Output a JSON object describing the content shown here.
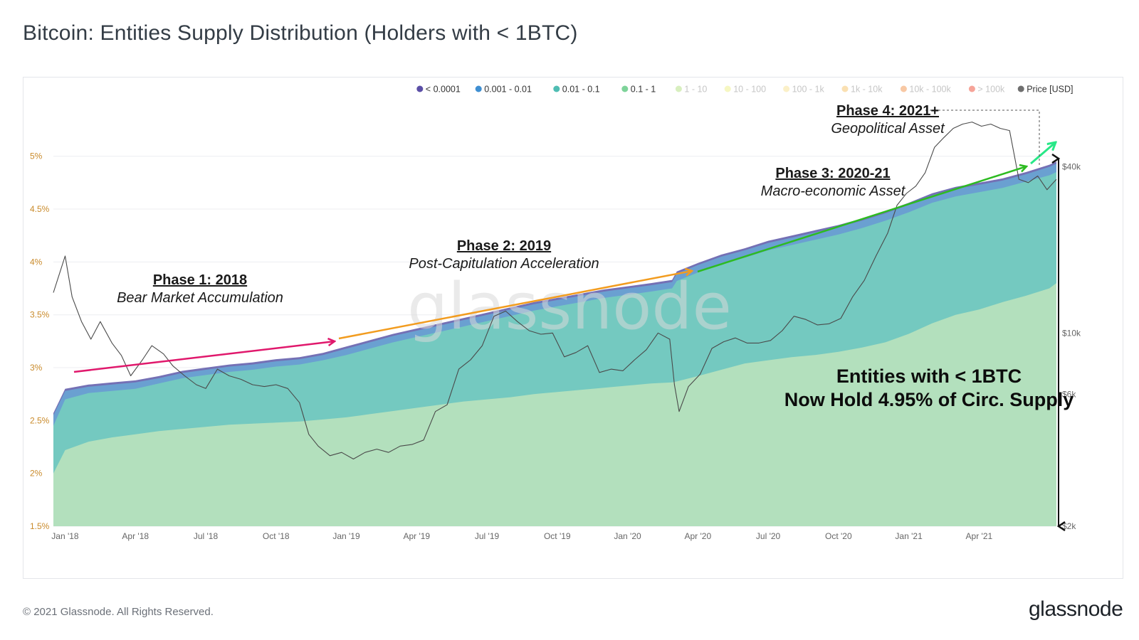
{
  "header": {
    "title": "Bitcoin: Entities Supply Distribution (Holders with < 1BTC)"
  },
  "footer": {
    "copyright": "© 2021 Glassnode. All Rights Reserved.",
    "brand": "glassnode"
  },
  "watermark": "glassnode",
  "chart_data": {
    "type": "area",
    "title": "Bitcoin: Entities Supply Distribution (Holders with < 1BTC)",
    "legend_position": "top-right",
    "legend": [
      {
        "label": "< 0.0001",
        "color": "#5b4fa6",
        "active": true
      },
      {
        "label": "0.001 - 0.01",
        "color": "#3f8fd2",
        "active": true
      },
      {
        "label": "0.01 - 0.1",
        "color": "#4fbdb3",
        "active": true
      },
      {
        "label": "0.1 - 1",
        "color": "#7ed39a",
        "active": true
      },
      {
        "label": "1 - 10",
        "color": "#b8e28a",
        "active": false
      },
      {
        "label": "10 - 100",
        "color": "#eef08f",
        "active": false
      },
      {
        "label": "100 - 1k",
        "color": "#f8e39a",
        "active": false
      },
      {
        "label": "1k - 10k",
        "color": "#f6c672",
        "active": false
      },
      {
        "label": "10k - 100k",
        "color": "#f29a5a",
        "active": false
      },
      {
        "label": "> 100k",
        "color": "#ef5a45",
        "active": false
      },
      {
        "label": "Price [USD]",
        "color": "#6f6f6f",
        "active": true
      }
    ],
    "x_ticks": [
      "Jan '18",
      "Apr '18",
      "Jul '18",
      "Oct '18",
      "Jan '19",
      "Apr '19",
      "Jul '19",
      "Oct '19",
      "Jan '20",
      "Apr '20",
      "Jul '20",
      "Oct '20",
      "Jan '21",
      "Apr '21"
    ],
    "x_tick_months": [
      1,
      4,
      7,
      10,
      13,
      16,
      19,
      22,
      25,
      28,
      31,
      34,
      37,
      40
    ],
    "y_left_ticks": [
      "1.5%",
      "2%",
      "2.5%",
      "3%",
      "3.5%",
      "4%",
      "4.5%",
      "5%"
    ],
    "y_left_tick_values": [
      1.5,
      2,
      2.5,
      3,
      3.5,
      4,
      4.5,
      5
    ],
    "ylim_left": [
      1.5,
      5.2
    ],
    "y_right_ticks": [
      "$2k",
      "$6k",
      "$10k",
      "$40k"
    ],
    "y_right_tick_values": [
      2000,
      6000,
      10000,
      40000
    ],
    "ylim_right_log": [
      2000,
      52000
    ],
    "grid": true,
    "series_x_months": [
      0.5,
      1,
      2,
      3,
      4,
      5,
      6,
      7,
      8,
      9,
      10,
      11,
      12,
      13,
      14,
      15,
      16,
      17,
      18,
      19,
      20,
      21,
      22,
      23,
      24,
      25,
      26,
      26.9,
      27.1,
      28,
      29,
      30,
      31,
      32,
      33,
      34,
      35,
      36,
      37,
      38,
      39,
      40,
      41,
      42,
      43,
      43.3
    ],
    "series": [
      {
        "name": "0.1 - 1",
        "color": "#b3e0bd",
        "values": [
          2.0,
          2.22,
          2.3,
          2.34,
          2.37,
          2.4,
          2.42,
          2.44,
          2.46,
          2.47,
          2.48,
          2.49,
          2.51,
          2.53,
          2.56,
          2.59,
          2.62,
          2.65,
          2.68,
          2.7,
          2.72,
          2.75,
          2.77,
          2.79,
          2.81,
          2.83,
          2.85,
          2.86,
          2.87,
          2.92,
          2.98,
          3.04,
          3.07,
          3.1,
          3.12,
          3.15,
          3.19,
          3.24,
          3.32,
          3.42,
          3.5,
          3.55,
          3.62,
          3.68,
          3.75,
          3.8
        ]
      },
      {
        "name": "0.01 - 0.1",
        "color": "#74c9c0",
        "values": [
          2.45,
          2.7,
          2.76,
          2.78,
          2.8,
          2.85,
          2.9,
          2.93,
          2.96,
          2.98,
          3.01,
          3.03,
          3.07,
          3.12,
          3.18,
          3.24,
          3.29,
          3.34,
          3.39,
          3.44,
          3.49,
          3.54,
          3.58,
          3.62,
          3.66,
          3.69,
          3.72,
          3.75,
          3.82,
          3.9,
          3.98,
          4.04,
          4.11,
          4.16,
          4.21,
          4.26,
          4.32,
          4.39,
          4.47,
          4.56,
          4.62,
          4.66,
          4.7,
          4.76,
          4.82,
          4.85
        ]
      },
      {
        "name": "0.001 - 0.01",
        "color": "#6aa0d1",
        "values": [
          2.55,
          2.78,
          2.82,
          2.84,
          2.86,
          2.9,
          2.95,
          2.98,
          3.01,
          3.03,
          3.06,
          3.08,
          3.12,
          3.18,
          3.24,
          3.3,
          3.35,
          3.4,
          3.45,
          3.5,
          3.55,
          3.6,
          3.64,
          3.68,
          3.72,
          3.75,
          3.78,
          3.81,
          3.89,
          3.97,
          4.05,
          4.11,
          4.18,
          4.23,
          4.28,
          4.33,
          4.39,
          4.46,
          4.54,
          4.63,
          4.69,
          4.73,
          4.77,
          4.83,
          4.9,
          4.93
        ]
      },
      {
        "name": "< 0.0001",
        "color": "#7470b5",
        "values": [
          2.57,
          2.8,
          2.84,
          2.86,
          2.88,
          2.92,
          2.97,
          3.0,
          3.03,
          3.05,
          3.08,
          3.1,
          3.14,
          3.2,
          3.26,
          3.32,
          3.37,
          3.42,
          3.47,
          3.52,
          3.57,
          3.62,
          3.66,
          3.7,
          3.74,
          3.77,
          3.8,
          3.83,
          3.91,
          3.99,
          4.07,
          4.13,
          4.2,
          4.25,
          4.3,
          4.35,
          4.41,
          4.48,
          4.56,
          4.65,
          4.71,
          4.75,
          4.79,
          4.85,
          4.92,
          4.95
        ]
      }
    ],
    "price_series": {
      "name": "Price [USD]",
      "x_months": [
        0.5,
        1.0,
        1.3,
        1.7,
        2.1,
        2.5,
        3.0,
        3.4,
        3.8,
        4.3,
        4.7,
        5.2,
        5.6,
        6.1,
        6.6,
        7.0,
        7.5,
        8.0,
        8.5,
        9.0,
        9.5,
        10.0,
        10.5,
        11.0,
        11.4,
        11.8,
        12.3,
        12.8,
        13.3,
        13.8,
        14.3,
        14.8,
        15.3,
        15.8,
        16.3,
        16.8,
        17.3,
        17.8,
        18.3,
        18.8,
        19.3,
        19.8,
        20.3,
        20.8,
        21.3,
        21.8,
        22.3,
        22.8,
        23.3,
        23.8,
        24.3,
        24.8,
        25.3,
        25.8,
        26.3,
        26.8,
        27.0,
        27.2,
        27.6,
        28.1,
        28.6,
        29.1,
        29.6,
        30.1,
        30.6,
        31.1,
        31.6,
        32.1,
        32.6,
        33.1,
        33.6,
        34.1,
        34.6,
        35.1,
        35.6,
        36.1,
        36.5,
        36.9,
        37.3,
        37.7,
        38.1,
        38.5,
        38.9,
        39.3,
        39.7,
        40.1,
        40.5,
        40.9,
        41.3,
        41.7,
        42.1,
        42.5,
        42.9,
        43.3
      ],
      "values": [
        14000,
        19000,
        13500,
        11000,
        9500,
        11000,
        9200,
        8300,
        7000,
        8000,
        9000,
        8400,
        7600,
        7000,
        6500,
        6300,
        7400,
        7000,
        6800,
        6500,
        6400,
        6500,
        6300,
        5600,
        4300,
        3900,
        3600,
        3700,
        3500,
        3700,
        3800,
        3700,
        3900,
        3950,
        4100,
        5200,
        5500,
        7400,
        8000,
        9000,
        11500,
        12000,
        11000,
        10200,
        9900,
        10000,
        8200,
        8500,
        9000,
        7200,
        7400,
        7300,
        8000,
        8700,
        10000,
        9500,
        6500,
        5200,
        6400,
        7100,
        8800,
        9300,
        9600,
        9200,
        9200,
        9400,
        10200,
        11500,
        11200,
        10700,
        10800,
        11300,
        13500,
        15500,
        19000,
        23000,
        29000,
        32000,
        34000,
        38000,
        47000,
        51000,
        55000,
        57000,
        58000,
        56000,
        57000,
        55000,
        54000,
        36000,
        35000,
        37000,
        33000,
        36000
      ]
    },
    "annotations": [
      {
        "title": "Phase 1: 2018",
        "subtitle": "Bear Market Accumulation",
        "arrow_color": "#e0186c"
      },
      {
        "title": "Phase 2: 2019",
        "subtitle": "Post-Capitulation Acceleration",
        "arrow_color": "#f29c1f"
      },
      {
        "title": "Phase 3: 2020-21",
        "subtitle": "Macro-economic Asset",
        "arrow_color": "#2dbb21"
      },
      {
        "title": "Phase 4: 2021+",
        "subtitle": "Geopolitical Asset",
        "arrow_color": "#27e887"
      }
    ],
    "callout": {
      "line1": "Entities with < 1BTC",
      "line2": "Now Hold 4.95% of Circ. Supply"
    },
    "left_axis_color": "#c98a2a"
  }
}
